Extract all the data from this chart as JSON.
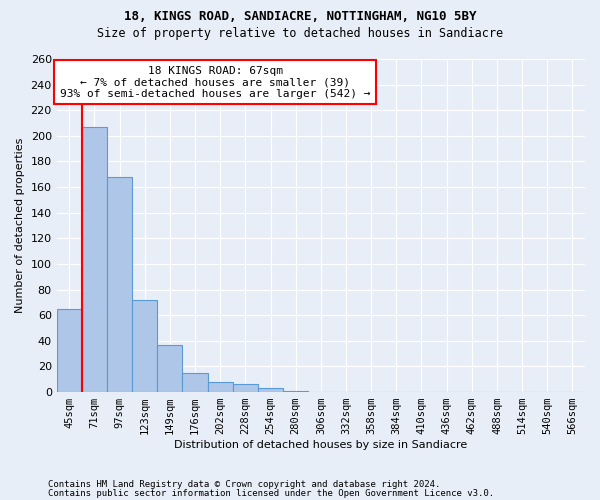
{
  "title1": "18, KINGS ROAD, SANDIACRE, NOTTINGHAM, NG10 5BY",
  "title2": "Size of property relative to detached houses in Sandiacre",
  "xlabel": "Distribution of detached houses by size in Sandiacre",
  "ylabel": "Number of detached properties",
  "categories": [
    "45sqm",
    "71sqm",
    "97sqm",
    "123sqm",
    "149sqm",
    "176sqm",
    "202sqm",
    "228sqm",
    "254sqm",
    "280sqm",
    "306sqm",
    "332sqm",
    "358sqm",
    "384sqm",
    "410sqm",
    "436sqm",
    "462sqm",
    "488sqm",
    "514sqm",
    "540sqm",
    "566sqm"
  ],
  "values": [
    65,
    207,
    168,
    72,
    37,
    15,
    8,
    6,
    3,
    1,
    0,
    0,
    0,
    0,
    0,
    0,
    0,
    0,
    0,
    0,
    0
  ],
  "bar_color": "#aec6e8",
  "bar_edge_color": "#5b9bd5",
  "vline_color": "red",
  "annotation_line1": "18 KINGS ROAD: 67sqm",
  "annotation_line2": "← 7% of detached houses are smaller (39)",
  "annotation_line3": "93% of semi-detached houses are larger (542) →",
  "annotation_box_color": "white",
  "annotation_box_edge_color": "red",
  "footnote1": "Contains HM Land Registry data © Crown copyright and database right 2024.",
  "footnote2": "Contains public sector information licensed under the Open Government Licence v3.0.",
  "ylim": [
    0,
    260
  ],
  "background_color": "#e8eef7",
  "grid_color": "white",
  "yticks": [
    0,
    20,
    40,
    60,
    80,
    100,
    120,
    140,
    160,
    180,
    200,
    220,
    240,
    260
  ]
}
